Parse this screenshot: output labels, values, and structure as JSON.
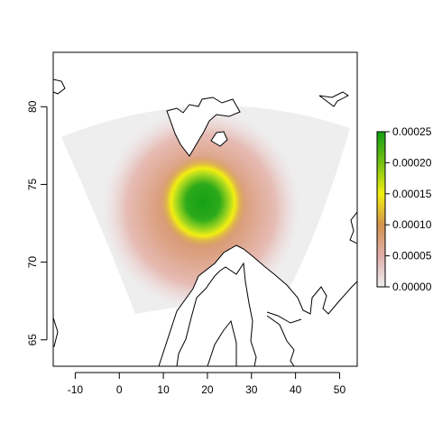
{
  "map": {
    "x_axis": {
      "range": [
        -15,
        54
      ],
      "ticks": [
        -10,
        0,
        10,
        20,
        30,
        40,
        50
      ],
      "tick_labels": [
        "-10",
        "0",
        "10",
        "20",
        "30",
        "40",
        "50"
      ]
    },
    "y_axis": {
      "range": [
        63.3,
        83.5
      ],
      "ticks": [
        65,
        70,
        75,
        80
      ],
      "tick_labels": [
        "65",
        "70",
        "75",
        "80"
      ]
    },
    "field": {
      "type": "density raster",
      "peak_at": [
        19.0,
        74.0
      ],
      "peak_value": 0.00025,
      "footprint_color": "#eeeeee",
      "colors": [
        "#eeeeee",
        "#e2b8b0",
        "#d39a68",
        "#f2ee12",
        "#a8d820",
        "#19a019"
      ]
    },
    "legend": {
      "range": [
        0,
        0.00025
      ],
      "labels": [
        "0.00000",
        "0.00005",
        "0.00010",
        "0.00015",
        "0.00020",
        "0.00025"
      ],
      "colors": [
        "#eeeeee",
        "#e0aeaa",
        "#d4944c",
        "#f2ee12",
        "#76c014",
        "#11a011"
      ],
      "placement": "right"
    },
    "coastline_color": "#000000"
  }
}
